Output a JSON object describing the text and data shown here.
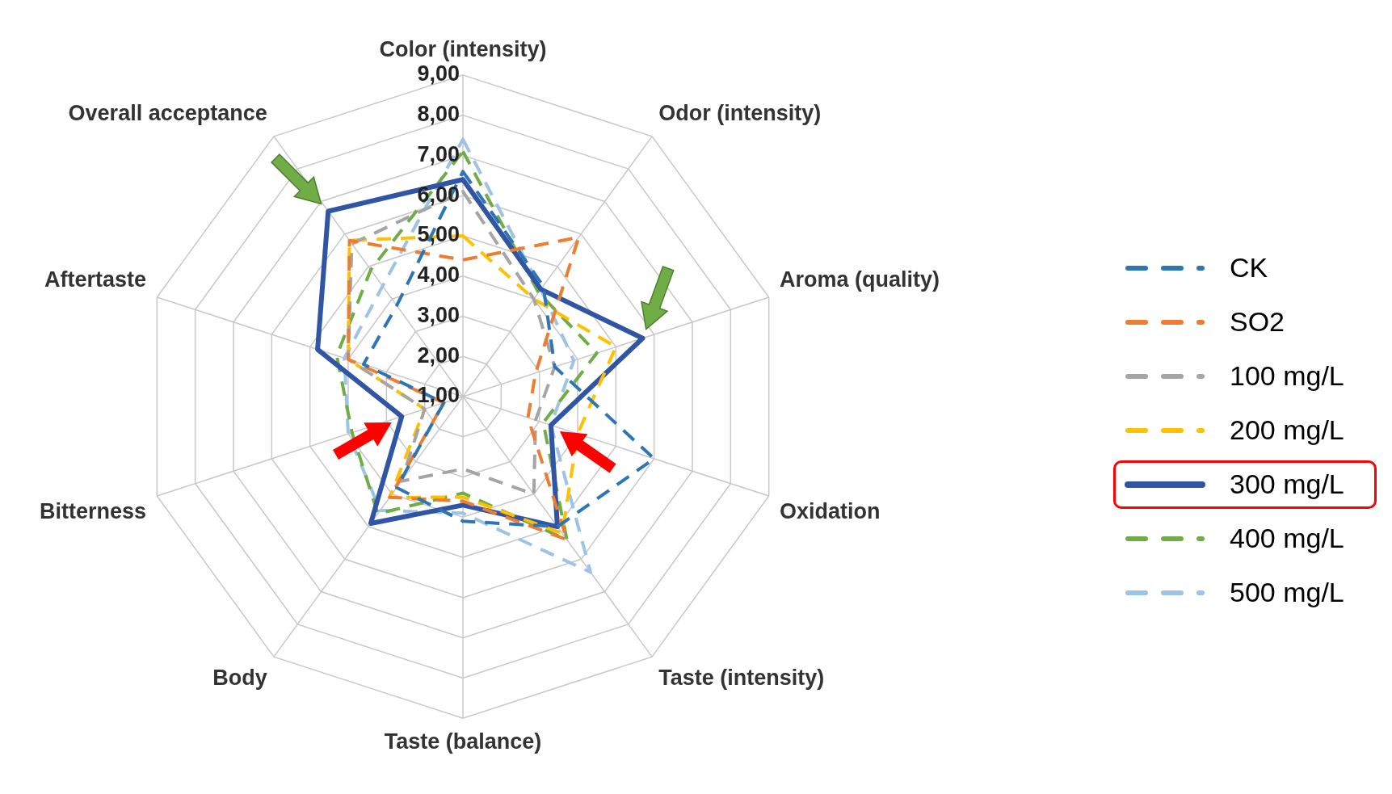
{
  "chart_data": {
    "type": "radar",
    "categories": [
      "Color (intensity)",
      "Odor (intensity)",
      "Aroma (quality)",
      "Oxidation",
      "Taste (intensity)",
      "Taste (balance)",
      "Body",
      "Bitterness",
      "Aftertaste",
      "Overall acceptance"
    ],
    "series": [
      {
        "name": "CK",
        "color": "#2e75b6",
        "line_style": "dashed",
        "values": [
          6.6,
          4.4,
          3.4,
          6.0,
          5.0,
          4.1,
          3.8,
          1.5,
          3.6,
          3.8
        ]
      },
      {
        "name": "SO2",
        "color": "#ed7d31",
        "line_style": "dashed",
        "values": [
          4.4,
          5.9,
          2.9,
          2.7,
          5.4,
          3.6,
          4.1,
          1.5,
          4.0,
          5.8
        ]
      },
      {
        "name": "100 mg/L",
        "color": "#a5a5a5",
        "line_style": "dashed",
        "values": [
          6.1,
          4.0,
          3.4,
          2.9,
          4.0,
          2.8,
          3.6,
          2.0,
          4.0,
          5.7
        ]
      },
      {
        "name": "200 mg/L",
        "color": "#ffc000",
        "line_style": "dashed",
        "values": [
          5.0,
          4.0,
          5.0,
          4.0,
          5.2,
          3.5,
          4.1,
          2.0,
          4.0,
          5.8
        ]
      },
      {
        "name": "300 mg/L",
        "color": "#2f55a4",
        "line_style": "solid",
        "values": [
          6.4,
          4.3,
          5.7,
          3.3,
          5.0,
          3.7,
          4.9,
          2.6,
          4.8,
          6.7
        ]
      },
      {
        "name": "400 mg/L",
        "color": "#70ad47",
        "line_style": "dashed",
        "values": [
          7.1,
          4.2,
          4.5,
          3.1,
          5.4,
          3.4,
          4.6,
          3.9,
          4.3,
          4.9
        ]
      },
      {
        "name": "500 mg/L",
        "color": "#9dc3e6",
        "line_style": "dashed",
        "values": [
          7.4,
          4.3,
          3.9,
          3.3,
          6.4,
          3.9,
          4.5,
          4.0,
          4.1,
          4.4
        ]
      }
    ],
    "ylim": [
      1,
      9
    ],
    "yticks": [
      {
        "value": 1,
        "label": "1,00"
      },
      {
        "value": 2,
        "label": "2,00"
      },
      {
        "value": 3,
        "label": "3,00"
      },
      {
        "value": 4,
        "label": "4,00"
      },
      {
        "value": 5,
        "label": "5,00"
      },
      {
        "value": 6,
        "label": "6,00"
      },
      {
        "value": 7,
        "label": "7,00"
      },
      {
        "value": 8,
        "label": "8,00"
      },
      {
        "value": 9,
        "label": "9,00"
      }
    ],
    "grid": true,
    "legend": "right",
    "marker": "none"
  }
}
